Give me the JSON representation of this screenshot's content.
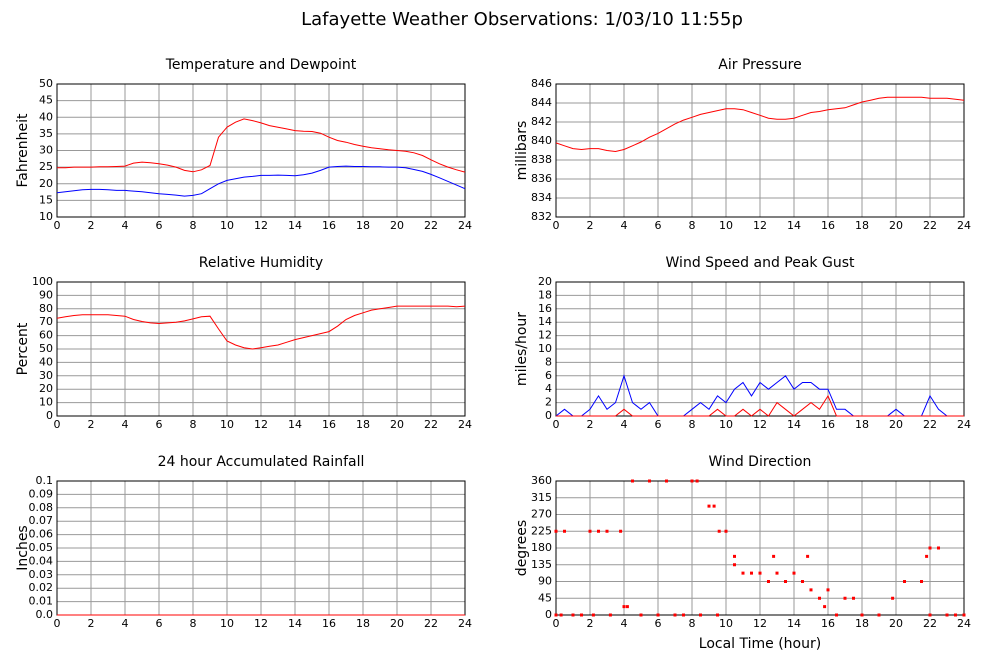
{
  "title": "Lafayette Weather Observations: 1/03/10 11:55p",
  "chart_data": [
    {
      "type": "line",
      "title": "Temperature and Dewpoint",
      "ylabel": "Fahrenheit",
      "x": [
        0,
        0.5,
        1,
        1.5,
        2,
        2.5,
        3,
        3.5,
        4,
        4.5,
        5,
        5.5,
        6,
        6.5,
        7,
        7.5,
        8,
        8.5,
        9,
        9.5,
        10,
        10.5,
        11,
        11.5,
        12,
        12.5,
        13,
        13.5,
        14,
        14.5,
        15,
        15.5,
        16,
        16.5,
        17,
        17.5,
        18,
        18.5,
        19,
        19.5,
        20,
        20.5,
        21,
        21.5,
        22,
        22.5,
        23,
        23.5,
        24
      ],
      "series": [
        {
          "color": "#ff0000",
          "values": [
            24.8,
            24.8,
            25,
            25,
            25,
            25.1,
            25.1,
            25.2,
            25.3,
            26.2,
            26.5,
            26.3,
            26,
            25.6,
            25,
            24,
            23.6,
            24.2,
            25.5,
            34,
            37,
            38.5,
            39.5,
            39,
            38.3,
            37.5,
            37,
            36.5,
            36,
            35.8,
            35.7,
            35.2,
            34,
            33,
            32.5,
            31.8,
            31.3,
            30.8,
            30.5,
            30.2,
            30,
            29.8,
            29.3,
            28.5,
            27.2,
            26,
            25,
            24.2,
            23.5
          ]
        },
        {
          "color": "#0000ff",
          "values": [
            17.3,
            17.6,
            17.9,
            18.2,
            18.3,
            18.3,
            18.2,
            18,
            18,
            17.8,
            17.6,
            17.3,
            17,
            16.8,
            16.6,
            16.3,
            16.5,
            17,
            18.5,
            20,
            21,
            21.5,
            22,
            22.2,
            22.5,
            22.5,
            22.6,
            22.5,
            22.4,
            22.7,
            23.2,
            24,
            25,
            25.2,
            25.3,
            25.2,
            25.2,
            25.1,
            25.1,
            25,
            25,
            24.8,
            24.3,
            23.7,
            22.8,
            21.8,
            20.7,
            19.6,
            18.5
          ]
        }
      ],
      "xlim": [
        0,
        24
      ],
      "xticks": [
        0,
        2,
        4,
        6,
        8,
        10,
        12,
        14,
        16,
        18,
        20,
        22,
        24
      ],
      "ylim": [
        10,
        50
      ],
      "yticks": [
        10,
        15,
        20,
        25,
        30,
        35,
        40,
        45,
        50
      ],
      "grid": true
    },
    {
      "type": "line",
      "title": "Air Pressure",
      "ylabel": "millibars",
      "x": [
        0,
        0.5,
        1,
        1.5,
        2,
        2.5,
        3,
        3.5,
        4,
        4.5,
        5,
        5.5,
        6,
        6.5,
        7,
        7.5,
        8,
        8.5,
        9,
        9.5,
        10,
        10.5,
        11,
        11.5,
        12,
        12.5,
        13,
        13.5,
        14,
        14.5,
        15,
        15.5,
        16,
        16.5,
        17,
        17.5,
        18,
        18.5,
        19,
        19.5,
        20,
        20.5,
        21,
        21.5,
        22,
        22.5,
        23,
        23.5,
        24
      ],
      "series": [
        {
          "color": "#ff0000",
          "values": [
            839.8,
            839.5,
            839.2,
            839.1,
            839.2,
            839.2,
            839.0,
            838.9,
            839.1,
            839.5,
            839.9,
            840.4,
            840.8,
            841.3,
            841.8,
            842.2,
            842.5,
            842.8,
            843.0,
            843.2,
            843.4,
            843.4,
            843.3,
            843.0,
            842.7,
            842.4,
            842.3,
            842.3,
            842.4,
            842.7,
            843.0,
            843.1,
            843.3,
            843.4,
            843.5,
            843.8,
            844.1,
            844.3,
            844.5,
            844.6,
            844.6,
            844.6,
            844.6,
            844.6,
            844.5,
            844.5,
            844.5,
            844.4,
            844.3
          ]
        }
      ],
      "xlim": [
        0,
        24
      ],
      "xticks": [
        0,
        2,
        4,
        6,
        8,
        10,
        12,
        14,
        16,
        18,
        20,
        22,
        24
      ],
      "ylim": [
        832,
        846
      ],
      "yticks": [
        832,
        834,
        836,
        838,
        840,
        842,
        844,
        846
      ],
      "grid": true
    },
    {
      "type": "line",
      "title": "Relative Humidity",
      "ylabel": "Percent",
      "x": [
        0,
        0.5,
        1,
        1.5,
        2,
        2.5,
        3,
        3.5,
        4,
        4.5,
        5,
        5.5,
        6,
        6.5,
        7,
        7.5,
        8,
        8.5,
        9,
        9.5,
        10,
        10.5,
        11,
        11.5,
        12,
        12.5,
        13,
        13.5,
        14,
        14.5,
        15,
        15.5,
        16,
        16.5,
        17,
        17.5,
        18,
        18.5,
        19,
        19.5,
        20,
        20.5,
        21,
        21.5,
        22,
        22.5,
        23,
        23.5,
        24
      ],
      "series": [
        {
          "color": "#ff0000",
          "values": [
            73,
            74,
            75,
            75.5,
            75.5,
            75.5,
            75.5,
            75,
            74.5,
            72,
            70.5,
            69.5,
            69,
            69.5,
            70,
            71,
            72.5,
            74,
            74.5,
            65,
            56,
            53,
            51,
            50,
            51,
            52,
            53,
            55,
            57,
            58.5,
            60,
            61.5,
            63,
            67,
            72,
            75,
            77,
            79,
            80,
            81,
            82,
            82,
            82,
            82,
            82,
            82,
            82,
            81.5,
            82
          ]
        }
      ],
      "xlim": [
        0,
        24
      ],
      "xticks": [
        0,
        2,
        4,
        6,
        8,
        10,
        12,
        14,
        16,
        18,
        20,
        22,
        24
      ],
      "ylim": [
        0,
        100
      ],
      "yticks": [
        0,
        10,
        20,
        30,
        40,
        50,
        60,
        70,
        80,
        90,
        100
      ],
      "grid": true
    },
    {
      "type": "line",
      "title": "Wind Speed and Peak Gust",
      "ylabel": "miles/hour",
      "x": [
        0,
        0.5,
        1,
        1.5,
        2,
        2.5,
        3,
        3.5,
        4,
        4.5,
        5,
        5.5,
        6,
        6.5,
        7,
        7.5,
        8,
        8.5,
        9,
        9.5,
        10,
        10.5,
        11,
        11.5,
        12,
        12.5,
        13,
        13.5,
        14,
        14.5,
        15,
        15.5,
        16,
        16.5,
        17,
        17.5,
        18,
        18.5,
        19,
        19.5,
        20,
        20.5,
        21,
        21.5,
        22,
        22.5,
        23,
        23.5,
        24
      ],
      "series": [
        {
          "color": "#0000ff",
          "values": [
            0,
            1,
            0,
            0,
            1,
            3,
            1,
            2,
            6,
            2,
            1,
            2,
            0,
            0,
            0,
            0,
            1,
            2,
            1,
            3,
            2,
            4,
            5,
            3,
            5,
            4,
            5,
            6,
            4,
            5,
            5,
            4,
            4,
            1,
            1,
            0,
            0,
            0,
            0,
            0,
            1,
            0,
            0,
            0,
            3,
            1,
            0,
            0,
            0
          ]
        },
        {
          "color": "#ff0000",
          "values": [
            0,
            0,
            0,
            0,
            0,
            0,
            0,
            0,
            1,
            0,
            0,
            0,
            0,
            0,
            0,
            0,
            0,
            0,
            0,
            1,
            0,
            0,
            1,
            0,
            1,
            0,
            2,
            1,
            0,
            1,
            2,
            1,
            3,
            0,
            0,
            0,
            0,
            0,
            0,
            0,
            0,
            0,
            0,
            0,
            0,
            0,
            0,
            0,
            0
          ]
        }
      ],
      "xlim": [
        0,
        24
      ],
      "xticks": [
        0,
        2,
        4,
        6,
        8,
        10,
        12,
        14,
        16,
        18,
        20,
        22,
        24
      ],
      "ylim": [
        0,
        20
      ],
      "yticks": [
        0,
        2,
        4,
        6,
        8,
        10,
        12,
        14,
        16,
        18,
        20
      ],
      "grid": true
    },
    {
      "type": "line",
      "title": "24 hour Accumulated Rainfall",
      "ylabel": "Inches",
      "x": [
        0,
        24
      ],
      "series": [
        {
          "color": "#ff0000",
          "values": [
            0,
            0
          ]
        }
      ],
      "xlim": [
        0,
        24
      ],
      "xticks": [
        0,
        2,
        4,
        6,
        8,
        10,
        12,
        14,
        16,
        18,
        20,
        22,
        24
      ],
      "ylim": [
        0,
        0.1
      ],
      "yticks": [
        {
          "value": 0,
          "label": "0.0"
        },
        0.01,
        0.02,
        0.03,
        0.04,
        0.05,
        0.06,
        0.07,
        0.08,
        0.09,
        0.1
      ],
      "grid": true
    },
    {
      "type": "scatter",
      "title": "Wind Direction",
      "ylabel": "degrees",
      "xlabel": "Local Time (hour)",
      "x": [
        0,
        0.5,
        0.3,
        1,
        1.5,
        2,
        2.5,
        3,
        3.8,
        2.2,
        3.2,
        4,
        4.2,
        4.5,
        5.5,
        6.5,
        5,
        6,
        7,
        8,
        8.5,
        8.3,
        9,
        9.3,
        9.6,
        10,
        9.5,
        10.5,
        10.5,
        11,
        11.5,
        12,
        12.5,
        13,
        13.5,
        14,
        14.5,
        15,
        15.5,
        16,
        15.8,
        16.5,
        17,
        17.5,
        18,
        19,
        19.8,
        20.5,
        21.5,
        21.8,
        22,
        22.5,
        22,
        23,
        23.5,
        24,
        12.8,
        14.8,
        0,
        7.5
      ],
      "series": [
        {
          "color": "#ff0000",
          "values": [
            225,
            225,
            0,
            0,
            0,
            225,
            225,
            225,
            225,
            0,
            0,
            22.5,
            22.5,
            360,
            360,
            360,
            0,
            0,
            0,
            360,
            0,
            360,
            292.5,
            292.5,
            225,
            225,
            0,
            157.5,
            135,
            112.5,
            112.5,
            112.5,
            90,
            112.5,
            90,
            112.5,
            90,
            67.5,
            45,
            67.5,
            22.5,
            0,
            45,
            45,
            0,
            0,
            45,
            90,
            90,
            157.5,
            180,
            180,
            0,
            0,
            0,
            0,
            157.5,
            157.5,
            0,
            0
          ]
        }
      ],
      "xlim": [
        0,
        24
      ],
      "xticks": [
        0,
        2,
        4,
        6,
        8,
        10,
        12,
        14,
        16,
        18,
        20,
        22,
        24
      ],
      "ylim": [
        0,
        360
      ],
      "yticks": [
        0,
        45,
        90,
        135,
        180,
        225,
        270,
        315,
        360
      ],
      "grid": true
    }
  ]
}
